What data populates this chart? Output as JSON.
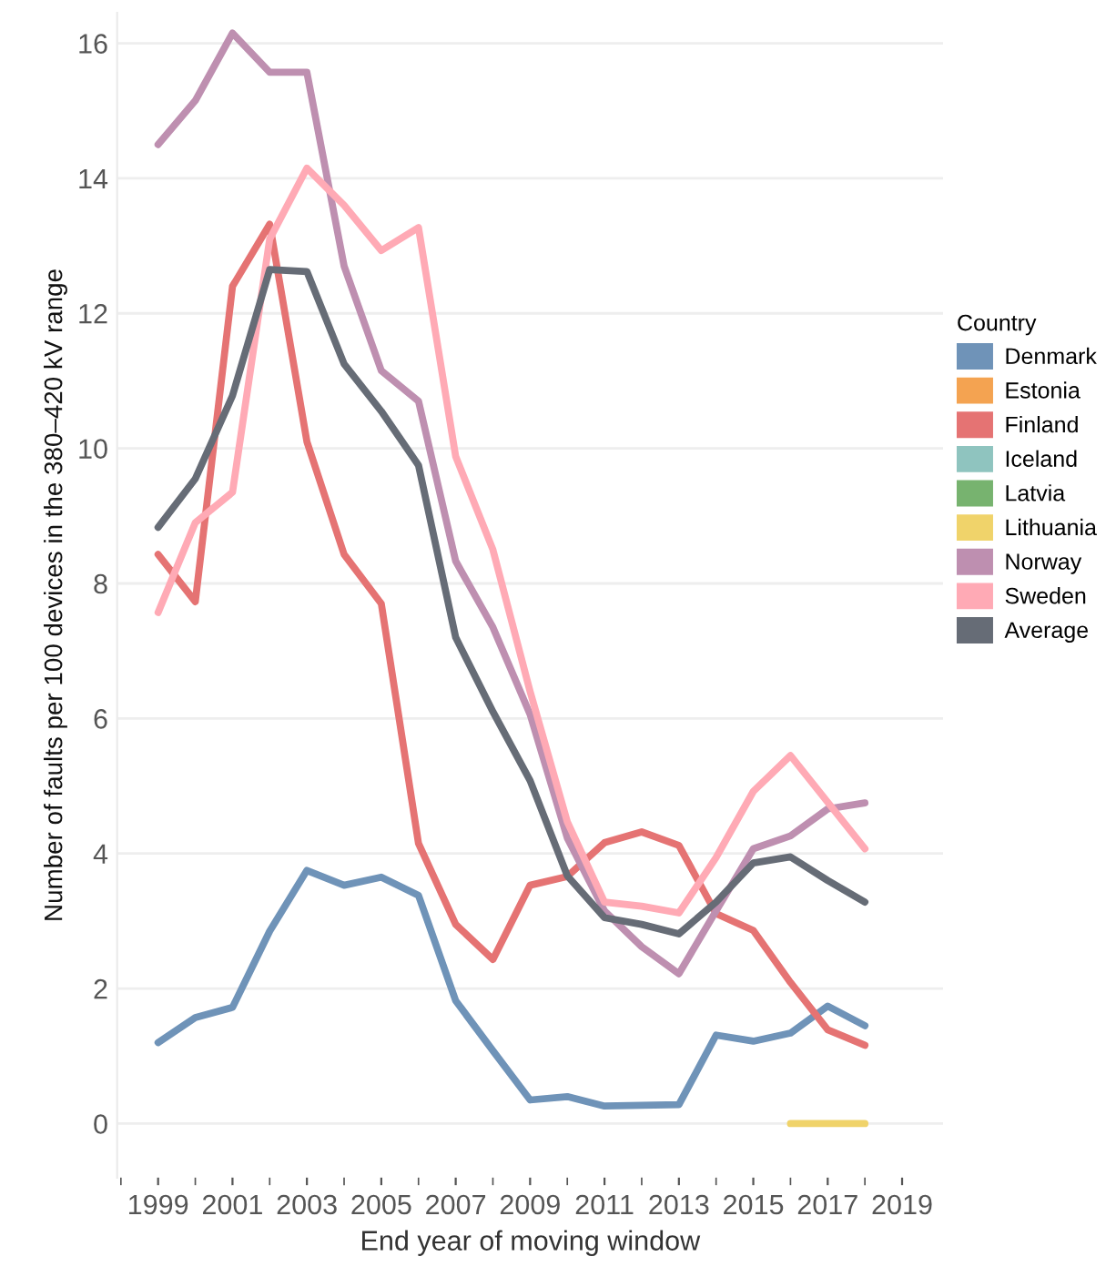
{
  "chart_data": {
    "type": "line",
    "xlabel": "End year of moving window",
    "ylabel": "Number of faults per 100 devices in the 380–420 kV range",
    "legend_title": "Country",
    "x": [
      1999,
      2000,
      2001,
      2002,
      2003,
      2004,
      2005,
      2006,
      2007,
      2008,
      2009,
      2010,
      2011,
      2012,
      2013,
      2014,
      2015,
      2016,
      2017,
      2018
    ],
    "series": [
      {
        "name": "Denmark",
        "color": "#6f93b8",
        "values": [
          1.2,
          1.57,
          1.72,
          2.85,
          3.75,
          3.53,
          3.65,
          3.38,
          1.82,
          1.08,
          0.35,
          0.4,
          0.26,
          0.27,
          0.28,
          1.31,
          1.22,
          1.34,
          1.74,
          1.45
        ]
      },
      {
        "name": "Estonia",
        "color": "#f4a351",
        "values": [
          null,
          null,
          null,
          null,
          null,
          null,
          null,
          null,
          null,
          null,
          null,
          null,
          null,
          null,
          null,
          null,
          null,
          null,
          null,
          null
        ]
      },
      {
        "name": "Finland",
        "color": "#e57373",
        "values": [
          8.43,
          7.73,
          12.4,
          13.32,
          10.1,
          8.43,
          7.7,
          4.15,
          2.95,
          2.43,
          3.53,
          3.66,
          4.16,
          4.32,
          4.12,
          3.11,
          2.86,
          2.09,
          1.39,
          1.16
        ]
      },
      {
        "name": "Iceland",
        "color": "#8fc4bf",
        "values": [
          null,
          null,
          null,
          null,
          null,
          null,
          null,
          null,
          null,
          null,
          null,
          null,
          null,
          null,
          null,
          null,
          null,
          null,
          null,
          null
        ]
      },
      {
        "name": "Latvia",
        "color": "#77b36f",
        "values": [
          null,
          null,
          null,
          null,
          null,
          null,
          null,
          null,
          null,
          null,
          null,
          null,
          null,
          null,
          null,
          null,
          null,
          null,
          null,
          null
        ]
      },
      {
        "name": "Lithuania",
        "color": "#f0d36a",
        "values": [
          null,
          null,
          null,
          null,
          null,
          null,
          null,
          null,
          null,
          null,
          null,
          null,
          null,
          null,
          null,
          null,
          null,
          0,
          0,
          0
        ]
      },
      {
        "name": "Norway",
        "color": "#be8fb0",
        "values": [
          14.5,
          15.15,
          16.15,
          15.57,
          15.57,
          12.7,
          11.15,
          10.7,
          8.33,
          7.35,
          6.06,
          4.23,
          3.15,
          2.62,
          2.22,
          3.15,
          4.07,
          4.26,
          4.66,
          4.75
        ]
      },
      {
        "name": "Sweden",
        "color": "#ffaab5",
        "values": [
          7.57,
          8.9,
          9.35,
          13.1,
          14.15,
          13.6,
          12.93,
          13.27,
          9.88,
          8.5,
          6.4,
          4.47,
          3.28,
          3.22,
          3.12,
          3.94,
          4.92,
          5.45,
          4.76,
          4.07
        ]
      },
      {
        "name": "Average",
        "color": "#666c76",
        "values": [
          8.83,
          9.55,
          10.78,
          12.65,
          12.62,
          11.25,
          10.55,
          9.75,
          7.2,
          6.1,
          5.08,
          3.67,
          3.05,
          2.95,
          2.81,
          3.28,
          3.86,
          3.95,
          3.6,
          3.28
        ]
      }
    ],
    "xlim": [
      1997.9,
      2020.1
    ],
    "xticks": [
      {
        "value": 1998,
        "label": null
      },
      1999,
      {
        "value": 2000,
        "label": null
      },
      2001,
      {
        "value": 2002,
        "label": null
      },
      2003,
      {
        "value": 2004,
        "label": null
      },
      2005,
      {
        "value": 2006,
        "label": null
      },
      2007,
      {
        "value": 2008,
        "label": null
      },
      2009,
      {
        "value": 2010,
        "label": null
      },
      2011,
      {
        "value": 2012,
        "label": null
      },
      2013,
      {
        "value": 2014,
        "label": null
      },
      2015,
      {
        "value": 2016,
        "label": null
      },
      2017,
      {
        "value": 2018,
        "label": null
      },
      2019
    ],
    "ylim": [
      -0.8,
      16.45
    ],
    "yticks": [
      0,
      2,
      4,
      6,
      8,
      10,
      12,
      14,
      16
    ],
    "grid": "y",
    "legend": "right",
    "line_style": "solid",
    "marker": "none"
  }
}
